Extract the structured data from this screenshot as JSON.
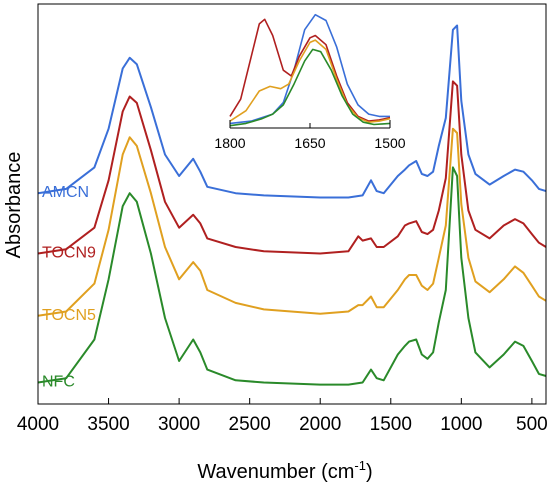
{
  "chart_data": {
    "type": "line",
    "xlabel": "Wavenumber (cm⁻¹)",
    "ylabel": "Absorbance",
    "xlim": [
      4000,
      400
    ],
    "x_reversed": true,
    "x_ticks": [
      "4000",
      "3500",
      "3000",
      "2500",
      "2000",
      "1500",
      "1000",
      "500"
    ],
    "y_ticks_shown": false,
    "series": [
      {
        "name": "AMCN",
        "color": "#3a6fd8",
        "points": [
          [
            4000,
            0.9
          ],
          [
            3800,
            0.92
          ],
          [
            3600,
            1.02
          ],
          [
            3500,
            1.2
          ],
          [
            3400,
            1.48
          ],
          [
            3350,
            1.53
          ],
          [
            3300,
            1.5
          ],
          [
            3200,
            1.3
          ],
          [
            3100,
            1.08
          ],
          [
            3000,
            0.98
          ],
          [
            2900,
            1.06
          ],
          [
            2850,
            1.0
          ],
          [
            2800,
            0.93
          ],
          [
            2600,
            0.9
          ],
          [
            2400,
            0.89
          ],
          [
            2000,
            0.88
          ],
          [
            1800,
            0.88
          ],
          [
            1700,
            0.89
          ],
          [
            1640,
            0.96
          ],
          [
            1600,
            0.91
          ],
          [
            1550,
            0.9
          ],
          [
            1450,
            0.98
          ],
          [
            1400,
            1.01
          ],
          [
            1370,
            1.03
          ],
          [
            1320,
            1.05
          ],
          [
            1280,
            0.99
          ],
          [
            1240,
            0.98
          ],
          [
            1200,
            1.0
          ],
          [
            1160,
            1.12
          ],
          [
            1110,
            1.25
          ],
          [
            1060,
            1.66
          ],
          [
            1030,
            1.68
          ],
          [
            1000,
            1.33
          ],
          [
            950,
            1.08
          ],
          [
            900,
            0.99
          ],
          [
            800,
            0.94
          ],
          [
            700,
            0.98
          ],
          [
            620,
            1.01
          ],
          [
            560,
            1.0
          ],
          [
            500,
            0.96
          ],
          [
            450,
            0.92
          ],
          [
            400,
            0.91
          ]
        ]
      },
      {
        "name": "TOCN9",
        "color": "#b02020",
        "points": [
          [
            4000,
            0.62
          ],
          [
            3800,
            0.64
          ],
          [
            3600,
            0.74
          ],
          [
            3500,
            0.96
          ],
          [
            3400,
            1.28
          ],
          [
            3350,
            1.35
          ],
          [
            3300,
            1.32
          ],
          [
            3200,
            1.1
          ],
          [
            3100,
            0.86
          ],
          [
            3000,
            0.74
          ],
          [
            2900,
            0.8
          ],
          [
            2850,
            0.76
          ],
          [
            2800,
            0.69
          ],
          [
            2600,
            0.65
          ],
          [
            2400,
            0.63
          ],
          [
            2000,
            0.62
          ],
          [
            1800,
            0.63
          ],
          [
            1730,
            0.7
          ],
          [
            1700,
            0.68
          ],
          [
            1640,
            0.69
          ],
          [
            1600,
            0.65
          ],
          [
            1550,
            0.65
          ],
          [
            1450,
            0.7
          ],
          [
            1400,
            0.75
          ],
          [
            1370,
            0.76
          ],
          [
            1320,
            0.77
          ],
          [
            1280,
            0.72
          ],
          [
            1240,
            0.71
          ],
          [
            1200,
            0.73
          ],
          [
            1160,
            0.82
          ],
          [
            1110,
            0.97
          ],
          [
            1060,
            1.42
          ],
          [
            1030,
            1.4
          ],
          [
            1000,
            1.08
          ],
          [
            950,
            0.82
          ],
          [
            900,
            0.73
          ],
          [
            800,
            0.69
          ],
          [
            700,
            0.75
          ],
          [
            620,
            0.78
          ],
          [
            560,
            0.76
          ],
          [
            500,
            0.71
          ],
          [
            450,
            0.67
          ],
          [
            400,
            0.65
          ]
        ]
      },
      {
        "name": "TOCN5",
        "color": "#e0a020",
        "points": [
          [
            4000,
            0.33
          ],
          [
            3800,
            0.35
          ],
          [
            3600,
            0.48
          ],
          [
            3500,
            0.73
          ],
          [
            3400,
            1.08
          ],
          [
            3350,
            1.16
          ],
          [
            3300,
            1.12
          ],
          [
            3200,
            0.9
          ],
          [
            3100,
            0.65
          ],
          [
            3000,
            0.5
          ],
          [
            2900,
            0.58
          ],
          [
            2850,
            0.54
          ],
          [
            2800,
            0.45
          ],
          [
            2600,
            0.39
          ],
          [
            2400,
            0.36
          ],
          [
            2000,
            0.34
          ],
          [
            1800,
            0.35
          ],
          [
            1730,
            0.38
          ],
          [
            1700,
            0.38
          ],
          [
            1640,
            0.42
          ],
          [
            1600,
            0.37
          ],
          [
            1550,
            0.37
          ],
          [
            1450,
            0.45
          ],
          [
            1400,
            0.5
          ],
          [
            1370,
            0.52
          ],
          [
            1320,
            0.52
          ],
          [
            1280,
            0.47
          ],
          [
            1240,
            0.45
          ],
          [
            1200,
            0.48
          ],
          [
            1160,
            0.6
          ],
          [
            1110,
            0.75
          ],
          [
            1060,
            1.2
          ],
          [
            1030,
            1.18
          ],
          [
            1000,
            0.85
          ],
          [
            950,
            0.6
          ],
          [
            900,
            0.49
          ],
          [
            800,
            0.44
          ],
          [
            700,
            0.5
          ],
          [
            620,
            0.56
          ],
          [
            560,
            0.53
          ],
          [
            500,
            0.47
          ],
          [
            450,
            0.42
          ],
          [
            400,
            0.4
          ]
        ]
      },
      {
        "name": "NFC",
        "color": "#2a8a2a",
        "points": [
          [
            4000,
            0.02
          ],
          [
            3800,
            0.04
          ],
          [
            3600,
            0.22
          ],
          [
            3500,
            0.5
          ],
          [
            3400,
            0.84
          ],
          [
            3350,
            0.9
          ],
          [
            3300,
            0.86
          ],
          [
            3200,
            0.62
          ],
          [
            3100,
            0.32
          ],
          [
            3000,
            0.12
          ],
          [
            2900,
            0.22
          ],
          [
            2850,
            0.16
          ],
          [
            2800,
            0.08
          ],
          [
            2600,
            0.03
          ],
          [
            2400,
            0.02
          ],
          [
            2000,
            0.01
          ],
          [
            1800,
            0.01
          ],
          [
            1700,
            0.02
          ],
          [
            1640,
            0.08
          ],
          [
            1600,
            0.04
          ],
          [
            1550,
            0.03
          ],
          [
            1450,
            0.15
          ],
          [
            1400,
            0.19
          ],
          [
            1370,
            0.21
          ],
          [
            1320,
            0.22
          ],
          [
            1280,
            0.15
          ],
          [
            1240,
            0.13
          ],
          [
            1200,
            0.16
          ],
          [
            1160,
            0.3
          ],
          [
            1110,
            0.45
          ],
          [
            1060,
            1.02
          ],
          [
            1030,
            0.98
          ],
          [
            1000,
            0.6
          ],
          [
            950,
            0.32
          ],
          [
            900,
            0.16
          ],
          [
            800,
            0.09
          ],
          [
            700,
            0.15
          ],
          [
            620,
            0.21
          ],
          [
            560,
            0.19
          ],
          [
            500,
            0.12
          ],
          [
            450,
            0.06
          ],
          [
            400,
            0.05
          ]
        ]
      }
    ],
    "inset": {
      "xlim": [
        1800,
        1500
      ],
      "x_reversed": true,
      "x_ticks": [
        "1800",
        "1650",
        "1500"
      ],
      "series": [
        {
          "name": "AMCN",
          "color": "#3a6fd8",
          "points": [
            [
              1800,
              0.04
            ],
            [
              1760,
              0.06
            ],
            [
              1720,
              0.12
            ],
            [
              1700,
              0.22
            ],
            [
              1680,
              0.5
            ],
            [
              1660,
              0.85
            ],
            [
              1640,
              0.98
            ],
            [
              1620,
              0.93
            ],
            [
              1600,
              0.7
            ],
            [
              1580,
              0.38
            ],
            [
              1560,
              0.2
            ],
            [
              1540,
              0.12
            ],
            [
              1520,
              0.1
            ],
            [
              1500,
              0.1
            ]
          ]
        },
        {
          "name": "TOCN9",
          "color": "#b02020",
          "points": [
            [
              1800,
              0.1
            ],
            [
              1780,
              0.25
            ],
            [
              1760,
              0.62
            ],
            [
              1745,
              0.9
            ],
            [
              1735,
              0.94
            ],
            [
              1720,
              0.8
            ],
            [
              1700,
              0.5
            ],
            [
              1685,
              0.45
            ],
            [
              1670,
              0.62
            ],
            [
              1650,
              0.78
            ],
            [
              1640,
              0.8
            ],
            [
              1620,
              0.72
            ],
            [
              1600,
              0.45
            ],
            [
              1580,
              0.22
            ],
            [
              1560,
              0.1
            ],
            [
              1540,
              0.06
            ],
            [
              1520,
              0.07
            ],
            [
              1500,
              0.09
            ]
          ]
        },
        {
          "name": "TOCN5",
          "color": "#e0a020",
          "points": [
            [
              1800,
              0.06
            ],
            [
              1770,
              0.15
            ],
            [
              1745,
              0.32
            ],
            [
              1725,
              0.36
            ],
            [
              1705,
              0.34
            ],
            [
              1690,
              0.38
            ],
            [
              1670,
              0.58
            ],
            [
              1650,
              0.74
            ],
            [
              1640,
              0.76
            ],
            [
              1620,
              0.68
            ],
            [
              1600,
              0.42
            ],
            [
              1580,
              0.2
            ],
            [
              1560,
              0.09
            ],
            [
              1540,
              0.05
            ],
            [
              1520,
              0.06
            ],
            [
              1500,
              0.08
            ]
          ]
        },
        {
          "name": "NFC",
          "color": "#2a8a2a",
          "points": [
            [
              1800,
              0.02
            ],
            [
              1770,
              0.04
            ],
            [
              1740,
              0.08
            ],
            [
              1720,
              0.12
            ],
            [
              1700,
              0.2
            ],
            [
              1680,
              0.38
            ],
            [
              1660,
              0.58
            ],
            [
              1645,
              0.68
            ],
            [
              1630,
              0.66
            ],
            [
              1610,
              0.5
            ],
            [
              1590,
              0.28
            ],
            [
              1570,
              0.12
            ],
            [
              1550,
              0.05
            ],
            [
              1530,
              0.03
            ],
            [
              1500,
              0.04
            ]
          ]
        }
      ]
    }
  }
}
